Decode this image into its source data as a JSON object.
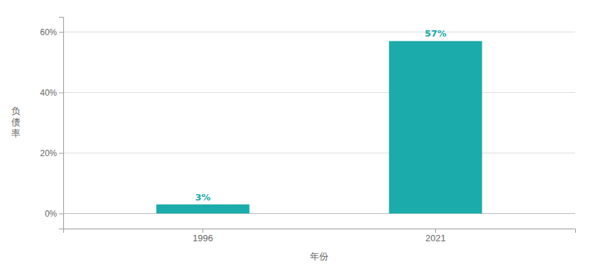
{
  "chart_data": {
    "type": "bar",
    "categories": [
      "1996",
      "2021"
    ],
    "values": [
      3,
      57
    ],
    "value_labels": [
      "3%",
      "57%"
    ],
    "data_labels": true,
    "color": "#1AABAA",
    "xlabel": "年份",
    "ylabel": "负\n债\n率",
    "ylim": [
      -5,
      65
    ],
    "yticks": [
      {
        "value": 0,
        "label": "0%"
      },
      {
        "value": 20,
        "label": "20%"
      },
      {
        "value": 40,
        "label": "40%"
      },
      {
        "value": 60,
        "label": "60%"
      }
    ],
    "grid": true
  }
}
